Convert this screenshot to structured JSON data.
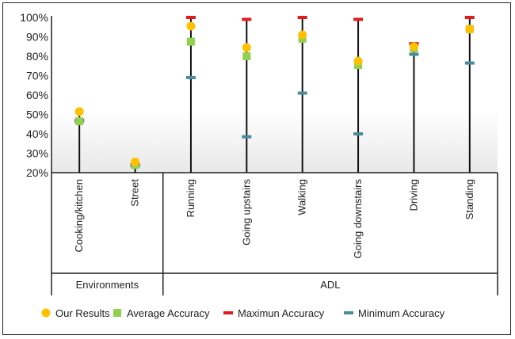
{
  "chart_data": {
    "type": "scatter",
    "title": "",
    "xlabel": "",
    "ylabel": "",
    "ylim": [
      20,
      100
    ],
    "yticks": [
      "20%",
      "30%",
      "40%",
      "50%",
      "60%",
      "70%",
      "80%",
      "90%",
      "100%"
    ],
    "categories": [
      "Cooking/kitchen",
      "Street",
      "Running",
      "Going upstairs",
      "Walking",
      "Going downstairs",
      "Driving",
      "Standing"
    ],
    "groups": [
      {
        "label": "Environments",
        "members": [
          "Cooking/kitchen",
          "Street"
        ]
      },
      {
        "label": "ADL",
        "members": [
          "Running",
          "Going upstairs",
          "Walking",
          "Going downstairs",
          "Driving",
          "Standing"
        ]
      }
    ],
    "series": [
      {
        "name": "Our Results",
        "color": "#FFC000",
        "marker": "circle",
        "values": [
          51.5,
          25.5,
          95.5,
          84.5,
          91,
          77.5,
          85,
          94
        ]
      },
      {
        "name": "Average Accuracy",
        "color": "#92D050",
        "marker": "square",
        "values": [
          46.5,
          24,
          87.5,
          80,
          89,
          75.5,
          84,
          94
        ]
      },
      {
        "name": "Maximun Accuracy",
        "color": "#E31A1C",
        "marker": "dash",
        "values": [
          47,
          24,
          100,
          99,
          100,
          99,
          86.5,
          100
        ]
      },
      {
        "name": "Minimum Accuracy",
        "color": "#4A8C9C",
        "marker": "dash",
        "values": [
          46.5,
          23.5,
          69,
          38.5,
          61,
          40,
          81,
          76.5
        ]
      }
    ],
    "legend_position": "bottom",
    "grid": false
  }
}
